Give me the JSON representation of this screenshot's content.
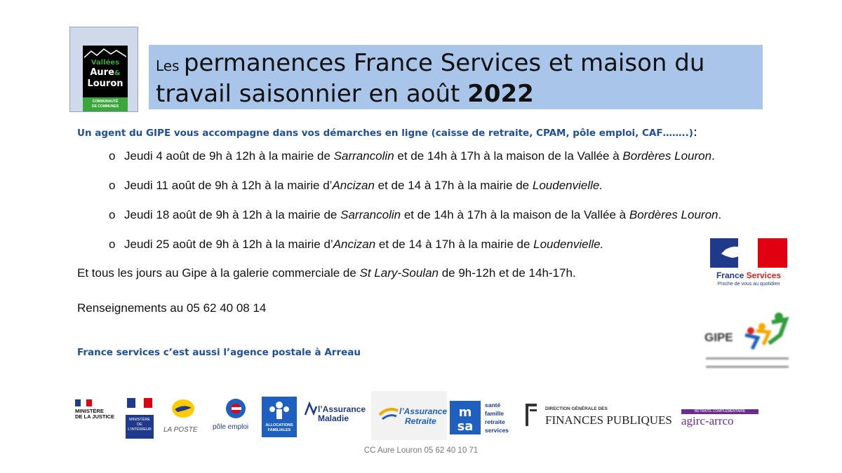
{
  "logo": {
    "line1": "Vallées",
    "line2": "Aure",
    "amp": "&",
    "line3": "Louron",
    "line4": "COMMUNAUTÉ",
    "line5": "DE COMMUNES"
  },
  "title": {
    "prefix": "Les ",
    "line1": "permanences France Services et maison du",
    "line2": "travail saisonnier en août ",
    "year": "2022"
  },
  "intro": {
    "text": "Un agent du GIPE vous accompagne dans vos démarches en ligne (caisse de retraite, CPAM, pôle emploi, CAF……..)",
    "colon": ":"
  },
  "items": [
    {
      "bullet": "o",
      "a": "Jeudi 4 août de 9h à 12h à la mairie de ",
      "b": "Sarrancolin",
      "c": " et de 14h à 17h à la maison de la Vallée à ",
      "d": "Bordères Louron",
      "e": "."
    },
    {
      "bullet": "o",
      "a": "Jeudi 11 août de 9h à 12h à la mairie d’",
      "b": "Ancizan",
      "c": " et de 14 à 17h à la mairie de ",
      "d": "Loudenvielle.",
      "e": ""
    },
    {
      "bullet": "o",
      "a": "Jeudi 18 août de 9h à 12h à la mairie de ",
      "b": "Sarrancolin",
      "c": " et de 14h à 17h à la maison de la Vallée à ",
      "d": "Bordères Louron",
      "e": "."
    },
    {
      "bullet": "o",
      "a": "Jeudi 25 août de 9h à 12h à la mairie d’",
      "b": "Ancizan",
      "c": " et de 14 à 17h à la mairie de ",
      "d": "Loudenvielle.",
      "e": ""
    }
  ],
  "daily": {
    "a": "Et tous les jours  au Gipe à la galerie commerciale de ",
    "b": "St Lary-Soulan",
    "c": " de 9h-12h et de 14h-17h."
  },
  "info": "Renseignements au 05 62 40 08 14",
  "agence": "France services c’est aussi l’agence postale à Arreau",
  "footer": "CC Aure Louron  05 62 40 10 71",
  "france_services_logo": {
    "name_a": "France ",
    "name_b": "Services",
    "sub": "Proche de vous au quotidien"
  },
  "gipe_logo": {
    "word": "GIPE"
  },
  "partners": {
    "justice": "MINISTÈRE\nDE LA JUSTICE",
    "interieur": "MINISTÈRE\nDE\nL’INTÉRIEUR",
    "laposte": "LA POSTE",
    "pole": "pôle emploi",
    "caf": "ALLOCATIONS\nFAMILIALES",
    "assurance_maladie": "l’Assurance\nMaladie",
    "assurance_retraite_a": "l’Assurance",
    "assurance_retraite_b": "Retraite",
    "msa": "santé\nfamille\nretraite\nservices",
    "dgfip_small": "DIRECTION GÉNÉRALE DES",
    "dgfip": "FINANCES PUBLIQUES",
    "agirc_small": "RETRAITE COMPLÉMENTAIRE",
    "agirc": "agirc-arrco"
  },
  "colors": {
    "title_band": "#a9c6ea",
    "intro_blue": "#1f4e9a",
    "logo_green": "#3aa73a"
  }
}
